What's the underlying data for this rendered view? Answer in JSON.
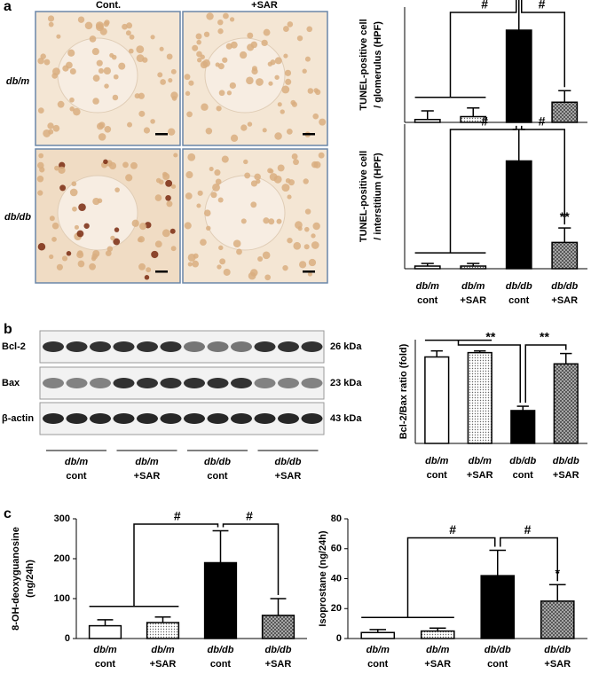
{
  "panels": {
    "a": "a",
    "b": "b",
    "c": "c"
  },
  "micrographs": {
    "columns": [
      "Cont.",
      "+SAR"
    ],
    "rows": [
      "db/m",
      "db/db"
    ]
  },
  "blot": {
    "rows": [
      "Bcl-2",
      "Bax",
      "β-actin"
    ],
    "sizes": [
      "26 kDa",
      "23 kDa",
      "43 kDa"
    ],
    "groups": [
      [
        "db/m",
        "cont"
      ],
      [
        "db/m",
        "+SAR"
      ],
      [
        "db/db",
        "cont"
      ],
      [
        "db/db",
        "+SAR"
      ]
    ]
  },
  "chart_data": [
    {
      "type": "bar",
      "ylabel": [
        "TUNEL-positive cell",
        "/ glomerulus (HPF)"
      ],
      "categories": [
        null,
        null,
        null,
        null
      ],
      "values": [
        0.1,
        0.2,
        3.2,
        0.7
      ],
      "errors": [
        0.3,
        0.3,
        1.1,
        0.4
      ],
      "colors": [
        "#ffffff",
        "#e2e2e2",
        "#000000",
        "#9a9a9a"
      ],
      "ylim": [
        0,
        4
      ],
      "annotations": [
        {
          "text": "#"
        },
        {
          "text": "#"
        }
      ]
    },
    {
      "type": "bar",
      "ylabel": [
        "TUNEL-positive cell",
        "/ interstitium (HPF)"
      ],
      "categories": [
        [
          "db/m",
          "cont"
        ],
        [
          "db/m",
          "+SAR"
        ],
        [
          "db/db",
          "cont"
        ],
        [
          "db/db",
          "+SAR"
        ]
      ],
      "values": [
        0.2,
        0.2,
        8.2,
        2.0
      ],
      "errors": [
        0.2,
        0.2,
        2.4,
        1.1
      ],
      "colors": [
        "#ffffff",
        "#e2e2e2",
        "#000000",
        "#9a9a9a"
      ],
      "ylim": [
        0,
        11
      ],
      "annotations": [
        {
          "text": "#"
        },
        {
          "text": "#"
        },
        {
          "text": "**"
        }
      ]
    },
    {
      "type": "bar",
      "ylabel": [
        "Bcl-2/Bax ratio (fold)"
      ],
      "categories": [
        [
          "db/m",
          "cont"
        ],
        [
          "db/m",
          "+SAR"
        ],
        [
          "db/db",
          "cont"
        ],
        [
          "db/db",
          "+SAR"
        ]
      ],
      "values": [
        1.0,
        1.05,
        0.38,
        0.92
      ],
      "errors": [
        0.07,
        0.02,
        0.05,
        0.12
      ],
      "colors": [
        "#ffffff",
        "#e2e2e2",
        "#000000",
        "#9a9a9a"
      ],
      "ylim": [
        0,
        1.2
      ],
      "annotations": [
        {
          "text": "**"
        },
        {
          "text": "**"
        }
      ]
    },
    {
      "type": "bar",
      "ylabel": [
        "8-OH-deoxyguanosine",
        "(ng/24h)"
      ],
      "categories": [
        [
          "db/m",
          "cont"
        ],
        [
          "db/m",
          "+SAR"
        ],
        [
          "db/db",
          "cont"
        ],
        [
          "db/db",
          "+SAR"
        ]
      ],
      "values": [
        32,
        40,
        190,
        58
      ],
      "errors": [
        15,
        14,
        80,
        42
      ],
      "colors": [
        "#ffffff",
        "#e2e2e2",
        "#000000",
        "#9a9a9a"
      ],
      "ylim": [
        0,
        300
      ],
      "yticks": [
        0,
        100,
        200,
        300
      ],
      "annotations": [
        {
          "text": "#"
        },
        {
          "text": "#"
        }
      ]
    },
    {
      "type": "bar",
      "ylabel": [
        "Isoprostane (ng/24h)"
      ],
      "categories": [
        [
          "db/m",
          "cont"
        ],
        [
          "db/m",
          "+SAR"
        ],
        [
          "db/db",
          "cont"
        ],
        [
          "db/db",
          "+SAR"
        ]
      ],
      "values": [
        4,
        5,
        42,
        25
      ],
      "errors": [
        2,
        2,
        17,
        11
      ],
      "colors": [
        "#ffffff",
        "#e2e2e2",
        "#000000",
        "#9a9a9a"
      ],
      "ylim": [
        0,
        80
      ],
      "yticks": [
        0,
        20,
        40,
        60,
        80
      ],
      "annotations": [
        {
          "text": "#"
        },
        {
          "text": "#"
        },
        {
          "text": "*"
        }
      ]
    }
  ]
}
